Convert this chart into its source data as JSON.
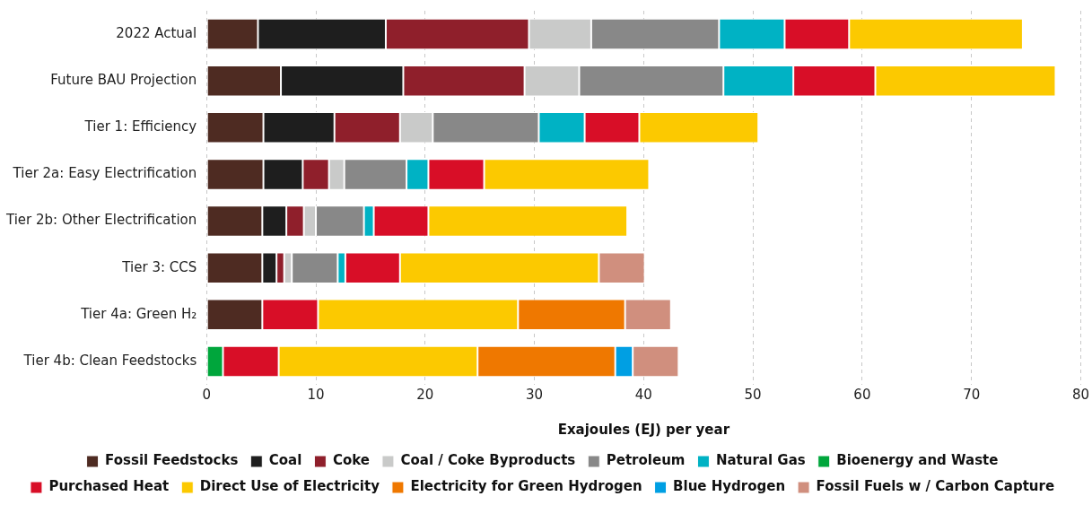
{
  "chart_data": {
    "type": "bar",
    "orientation": "horizontal",
    "stacked": true,
    "xlabel": "Exajoules (EJ) per year",
    "categories": [
      "2022 Actual",
      "Future BAU Projection",
      "Tier 1: Efficiency",
      "Tier 2a: Easy Electrification",
      "Tier 2b: Other Electrification",
      "Tier 3: CCS",
      "Tier 4a: Green H₂",
      "Tier 4b: Clean Feedstocks"
    ],
    "series": [
      {
        "name": "Fossil Feedstocks",
        "color": "#4e2b22",
        "values": [
          4.7,
          6.8,
          5.2,
          5.2,
          5.1,
          5.1,
          5.1,
          null
        ]
      },
      {
        "name": "Coal",
        "color": "#1e1e1e",
        "values": [
          11.7,
          11.2,
          6.5,
          3.6,
          2.2,
          1.3,
          null,
          null
        ]
      },
      {
        "name": "Coke",
        "color": "#8f1f2b",
        "values": [
          13.1,
          11.1,
          6.0,
          2.4,
          1.6,
          0.7,
          null,
          null
        ]
      },
      {
        "name": "Coal / Coke Byproducts",
        "color": "#c9cac9",
        "values": [
          5.7,
          5.0,
          3.0,
          1.4,
          1.1,
          0.7,
          null,
          null
        ]
      },
      {
        "name": "Petroleum",
        "color": "#888888",
        "values": [
          11.7,
          13.2,
          9.7,
          5.7,
          4.4,
          4.2,
          null,
          null
        ]
      },
      {
        "name": "Natural Gas",
        "color": "#00b2c4",
        "values": [
          6.0,
          6.4,
          4.2,
          2.0,
          0.9,
          0.7,
          null,
          null
        ]
      },
      {
        "name": "Bioenergy and Waste",
        "color": "#00a63c",
        "values": [
          null,
          null,
          null,
          null,
          null,
          null,
          null,
          1.5
        ]
      },
      {
        "name": "Purchased Heat",
        "color": "#d80e27",
        "values": [
          5.9,
          7.5,
          5.0,
          5.1,
          5.0,
          5.0,
          5.1,
          5.1
        ]
      },
      {
        "name": "Direct Use of Electricity",
        "color": "#fcc900",
        "values": [
          15.9,
          16.5,
          10.9,
          15.1,
          18.2,
          18.2,
          18.3,
          18.2
        ]
      },
      {
        "name": "Electricity for Green Hydrogen",
        "color": "#ef7800",
        "values": [
          null,
          null,
          null,
          null,
          null,
          null,
          9.8,
          12.6
        ]
      },
      {
        "name": "Blue Hydrogen",
        "color": "#009fe3",
        "values": [
          null,
          null,
          null,
          null,
          null,
          null,
          null,
          1.6
        ]
      },
      {
        "name": "Fossil Fuels w / Carbon Capture",
        "color": "#d08f7e",
        "values": [
          null,
          null,
          null,
          null,
          null,
          4.2,
          4.2,
          4.2
        ]
      }
    ],
    "xlim": [
      0,
      80
    ],
    "xticks": [
      0,
      10,
      20,
      30,
      40,
      50,
      60,
      70,
      80
    ],
    "grid": "x",
    "legend": "bottom"
  }
}
